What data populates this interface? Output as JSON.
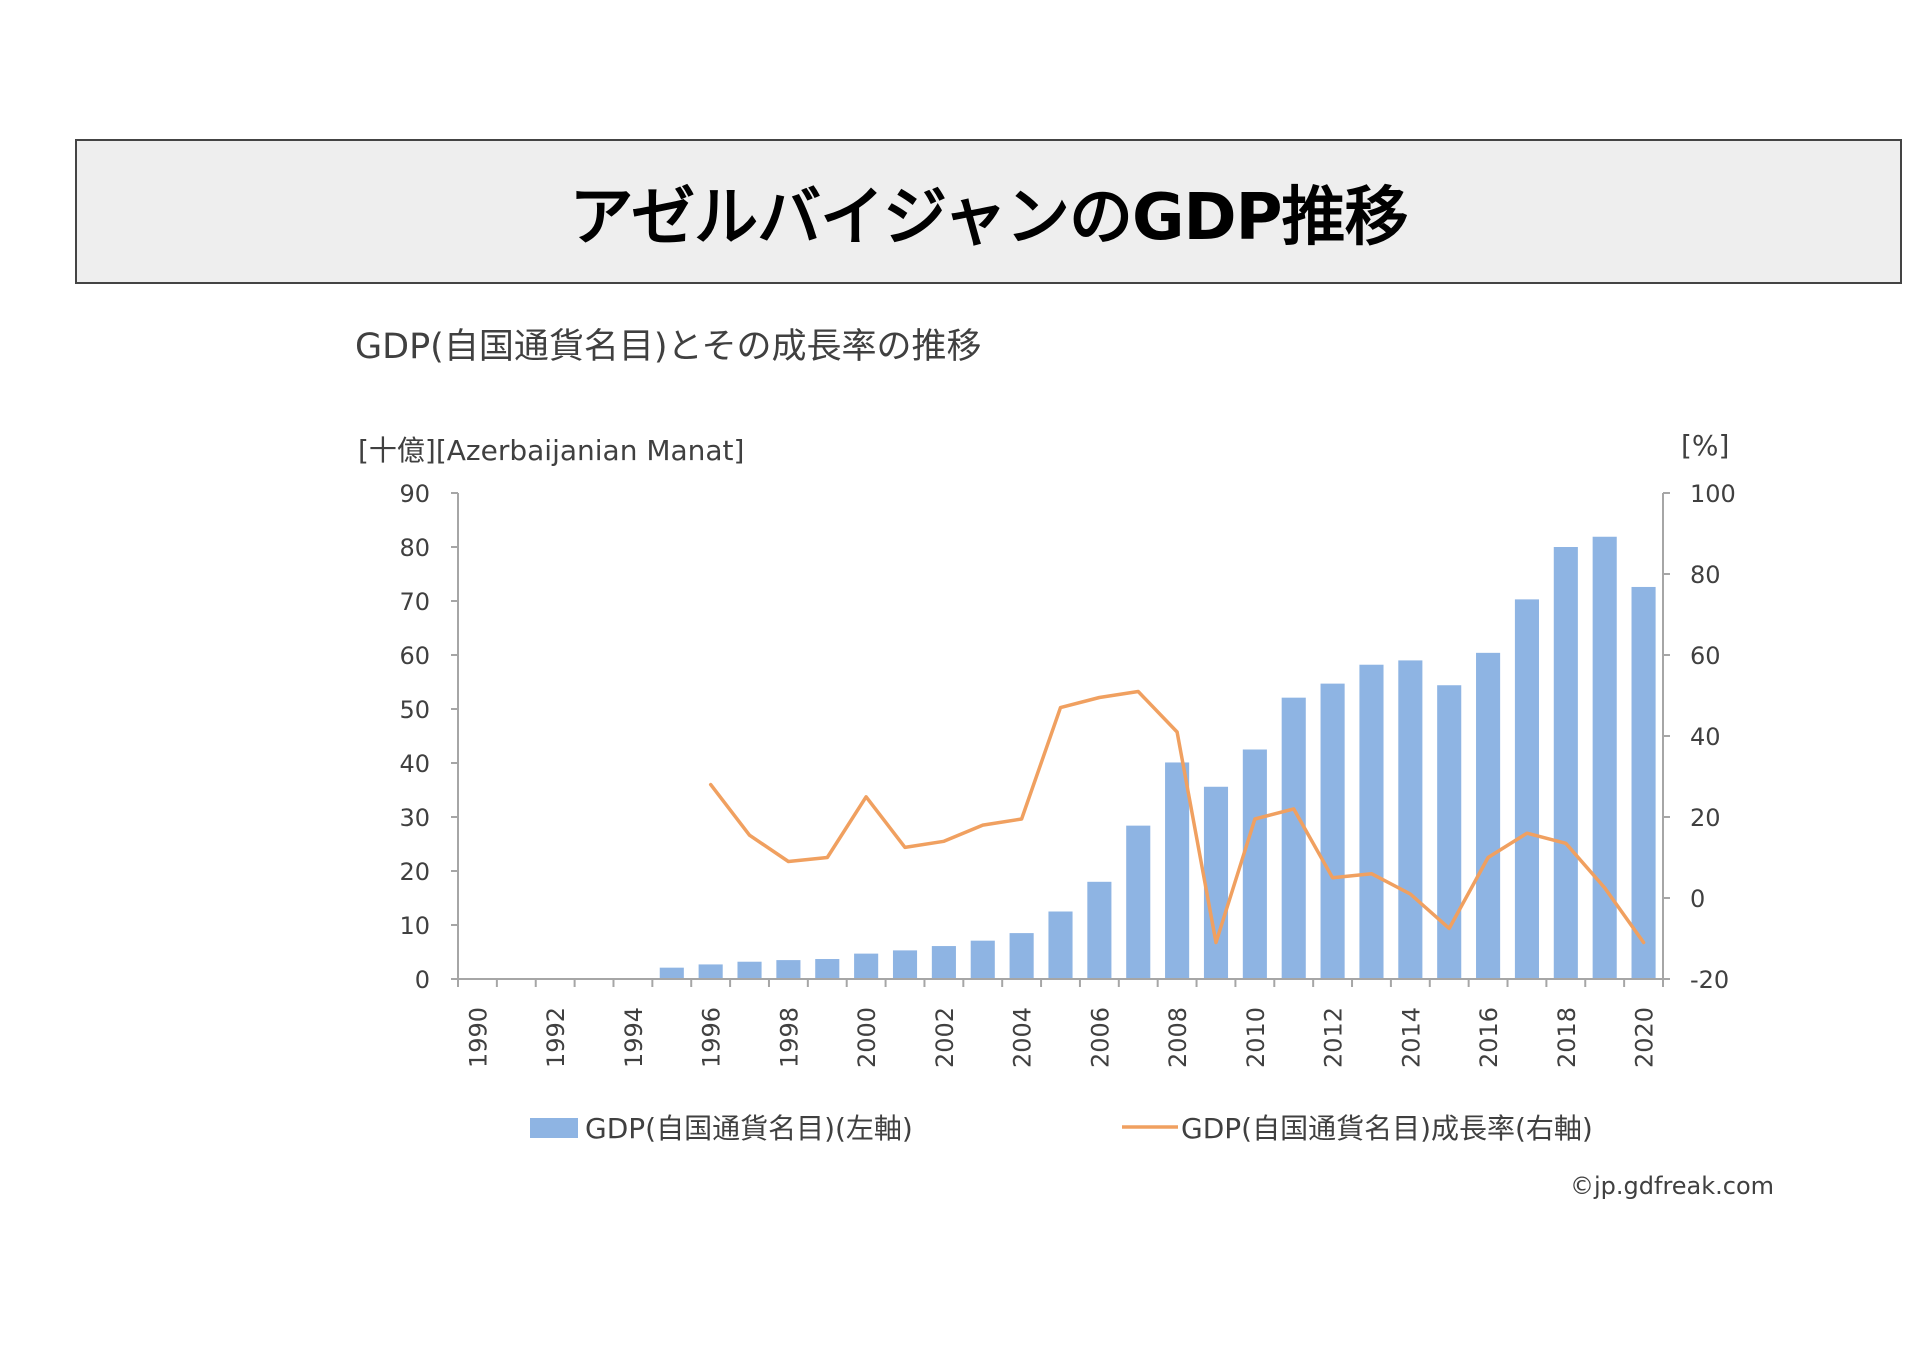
{
  "banner": {
    "title": "アゼルバイジャンのGDP推移"
  },
  "chart_title": "GDP(自国通貨名目)とその成長率の推移",
  "credit": "©jp.gdfreak.com",
  "colors": {
    "bar": "#8eb4e3",
    "line": "#f0a060",
    "axis": "#a6a6a6",
    "text": "#404040"
  },
  "chart_data": {
    "type": "bar",
    "title": "GDP(自国通貨名目)とその成長率の推移",
    "ylabel": "[十億][Azerbaijanian Manat]",
    "y2label": "[%]",
    "ylim": [
      0,
      90
    ],
    "y2lim": [
      -20,
      100
    ],
    "yticks": [
      "0",
      "10",
      "20",
      "30",
      "40",
      "50",
      "60",
      "70",
      "80",
      "90"
    ],
    "y2ticks": [
      "-20",
      "0",
      "20",
      "40",
      "60",
      "80",
      "100"
    ],
    "categories": [
      "1990",
      "1991",
      "1992",
      "1993",
      "1994",
      "1995",
      "1996",
      "1997",
      "1998",
      "1999",
      "2000",
      "2001",
      "2002",
      "2003",
      "2004",
      "2005",
      "2006",
      "2007",
      "2008",
      "2009",
      "2010",
      "2011",
      "2012",
      "2013",
      "2014",
      "2015",
      "2016",
      "2017",
      "2018",
      "2019",
      "2020"
    ],
    "xtick_labels": [
      "1990",
      "1992",
      "1994",
      "1996",
      "1998",
      "2000",
      "2002",
      "2004",
      "2006",
      "2008",
      "2010",
      "2012",
      "2014",
      "2016",
      "2018",
      "2020"
    ],
    "legend_position": "bottom",
    "series": [
      {
        "name": "GDP(自国通貨名目)(左軸)",
        "type": "bar",
        "axis": "left",
        "values": [
          null,
          null,
          null,
          null,
          null,
          2.1,
          2.7,
          3.2,
          3.5,
          3.7,
          4.7,
          5.3,
          6.1,
          7.1,
          8.5,
          12.5,
          18.0,
          28.4,
          40.1,
          35.6,
          42.5,
          52.1,
          54.7,
          58.2,
          59.0,
          54.4,
          60.4,
          70.3,
          80.0,
          81.9,
          72.6
        ]
      },
      {
        "name": "GDP(自国通貨名目)成長率(右軸)",
        "type": "line",
        "axis": "right",
        "values": [
          null,
          null,
          null,
          null,
          null,
          null,
          28.0,
          15.5,
          9.0,
          10.0,
          25.0,
          12.5,
          14.0,
          18.0,
          19.5,
          47.0,
          49.5,
          51.0,
          41.0,
          -11.0,
          19.5,
          22.0,
          5.0,
          6.0,
          1.0,
          -7.5,
          10.0,
          16.0,
          13.5,
          2.5,
          -11.0
        ]
      }
    ]
  }
}
